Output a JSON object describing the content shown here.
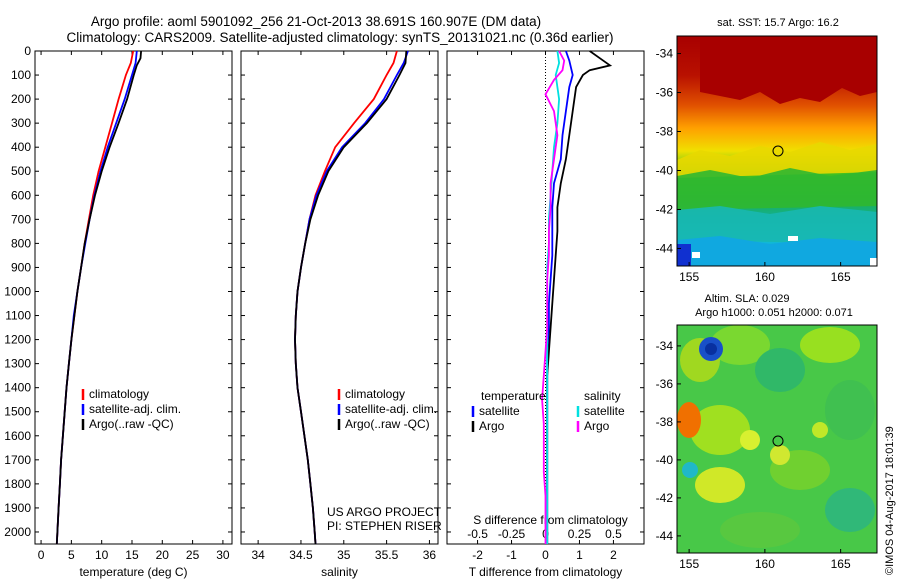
{
  "title_line1": "Argo profile: aoml 5901092_256 21-Oct-2013 38.691S 160.907E (DM data)",
  "title_line2": "Climatology: CARS2009. Satellite-adjusted climatology: synTS_20131021.nc (0.36d earlier)",
  "project_line1": "US ARGO PROJECT",
  "project_line2": "PI: STEPHEN RISER",
  "timestamp": "©IMOS 04-Aug-2017 18:01:39",
  "colors": {
    "climatology": "#ff0000",
    "satellite": "#0000ff",
    "argo": "#000000",
    "sat_salinity": "#00e0e0",
    "argo_salinity": "#ff00ff"
  },
  "chart_data": [
    {
      "type": "line",
      "id": "temperature",
      "xlabel": "temperature (deg C)",
      "ylabel": "",
      "xlim": [
        -1,
        31.5
      ],
      "ylim": [
        2050,
        0
      ],
      "xticks": [
        0,
        5,
        10,
        15,
        20,
        25,
        30
      ],
      "yticks": [
        0,
        100,
        200,
        300,
        400,
        500,
        600,
        700,
        800,
        900,
        1000,
        1100,
        1200,
        1300,
        1400,
        1500,
        1600,
        1700,
        1800,
        1900,
        2000
      ],
      "legend": [
        "climatology",
        "satellite-adj. clim.",
        "Argo(..raw -QC)"
      ],
      "series": [
        {
          "name": "climatology",
          "color": "#ff0000",
          "points": [
            [
              15.2,
              0
            ],
            [
              14.8,
              50
            ],
            [
              14.0,
              100
            ],
            [
              12.8,
              200
            ],
            [
              11.7,
              300
            ],
            [
              10.6,
              400
            ],
            [
              9.5,
              500
            ],
            [
              8.6,
              600
            ],
            [
              7.9,
              700
            ],
            [
              7.2,
              800
            ],
            [
              6.6,
              900
            ],
            [
              6.0,
              1000
            ],
            [
              5.5,
              1100
            ],
            [
              5.0,
              1200
            ],
            [
              4.6,
              1300
            ],
            [
              4.2,
              1400
            ],
            [
              3.9,
              1500
            ],
            [
              3.6,
              1600
            ],
            [
              3.3,
              1700
            ],
            [
              3.1,
              1800
            ],
            [
              2.9,
              1900
            ],
            [
              2.7,
              2000
            ],
            [
              2.6,
              2050
            ]
          ]
        },
        {
          "name": "satellite-adj. clim.",
          "color": "#0000ff",
          "points": [
            [
              15.8,
              0
            ],
            [
              15.6,
              50
            ],
            [
              15.0,
              100
            ],
            [
              13.8,
              200
            ],
            [
              12.4,
              300
            ],
            [
              11.0,
              400
            ],
            [
              9.8,
              500
            ],
            [
              8.8,
              600
            ],
            [
              8.0,
              700
            ],
            [
              7.3,
              800
            ],
            [
              6.6,
              900
            ],
            [
              6.0,
              1000
            ],
            [
              5.4,
              1100
            ],
            [
              5.0,
              1200
            ],
            [
              4.6,
              1300
            ],
            [
              4.2,
              1400
            ],
            [
              3.9,
              1500
            ],
            [
              3.6,
              1600
            ],
            [
              3.3,
              1700
            ],
            [
              3.1,
              1800
            ],
            [
              2.9,
              1900
            ],
            [
              2.7,
              2000
            ],
            [
              2.6,
              2050
            ]
          ]
        },
        {
          "name": "Argo(..raw -QC)",
          "color": "#000000",
          "points": [
            [
              16.5,
              0
            ],
            [
              16.4,
              30
            ],
            [
              15.8,
              60
            ],
            [
              15.3,
              100
            ],
            [
              14.2,
              200
            ],
            [
              12.8,
              300
            ],
            [
              11.3,
              400
            ],
            [
              10.0,
              500
            ],
            [
              8.9,
              600
            ],
            [
              8.0,
              700
            ],
            [
              7.2,
              800
            ],
            [
              6.6,
              900
            ],
            [
              6.0,
              1000
            ],
            [
              5.5,
              1100
            ],
            [
              5.0,
              1200
            ],
            [
              4.6,
              1300
            ],
            [
              4.2,
              1400
            ],
            [
              3.9,
              1500
            ],
            [
              3.6,
              1600
            ],
            [
              3.3,
              1700
            ],
            [
              3.1,
              1800
            ],
            [
              2.9,
              1900
            ],
            [
              2.7,
              2000
            ],
            [
              2.6,
              2050
            ]
          ]
        }
      ]
    },
    {
      "type": "line",
      "id": "salinity",
      "xlabel": "salinity",
      "ylabel": "",
      "xlim": [
        33.8,
        36.1
      ],
      "ylim": [
        2050,
        0
      ],
      "xticks": [
        34,
        34.5,
        35,
        35.5,
        36
      ],
      "legend": [
        "climatology",
        "satellite-adj. clim.",
        "Argo(..raw -QC)"
      ],
      "series": [
        {
          "name": "climatology",
          "color": "#ff0000",
          "points": [
            [
              35.62,
              0
            ],
            [
              35.58,
              50
            ],
            [
              35.5,
              100
            ],
            [
              35.35,
              200
            ],
            [
              35.12,
              300
            ],
            [
              34.9,
              400
            ],
            [
              34.78,
              500
            ],
            [
              34.67,
              600
            ],
            [
              34.6,
              700
            ],
            [
              34.55,
              800
            ],
            [
              34.5,
              900
            ],
            [
              34.46,
              1000
            ],
            [
              34.44,
              1100
            ],
            [
              34.43,
              1200
            ],
            [
              34.44,
              1300
            ],
            [
              34.46,
              1400
            ],
            [
              34.5,
              1500
            ],
            [
              34.54,
              1600
            ],
            [
              34.58,
              1700
            ],
            [
              34.61,
              1800
            ],
            [
              34.64,
              1900
            ],
            [
              34.66,
              2000
            ],
            [
              34.67,
              2050
            ]
          ]
        },
        {
          "name": "satellite-adj. clim.",
          "color": "#0000ff",
          "points": [
            [
              35.75,
              0
            ],
            [
              35.7,
              50
            ],
            [
              35.62,
              100
            ],
            [
              35.47,
              200
            ],
            [
              35.25,
              300
            ],
            [
              34.98,
              400
            ],
            [
              34.8,
              500
            ],
            [
              34.68,
              600
            ],
            [
              34.6,
              700
            ],
            [
              34.55,
              800
            ],
            [
              34.5,
              900
            ],
            [
              34.46,
              1000
            ],
            [
              34.44,
              1100
            ],
            [
              34.43,
              1200
            ],
            [
              34.44,
              1300
            ],
            [
              34.46,
              1400
            ],
            [
              34.5,
              1500
            ],
            [
              34.54,
              1600
            ],
            [
              34.58,
              1700
            ],
            [
              34.61,
              1800
            ],
            [
              34.64,
              1900
            ],
            [
              34.66,
              2000
            ],
            [
              34.67,
              2050
            ]
          ]
        },
        {
          "name": "Argo(..raw -QC)",
          "color": "#000000",
          "points": [
            [
              35.73,
              0
            ],
            [
              35.72,
              50
            ],
            [
              35.65,
              100
            ],
            [
              35.5,
              200
            ],
            [
              35.27,
              300
            ],
            [
              35.0,
              400
            ],
            [
              34.82,
              500
            ],
            [
              34.7,
              600
            ],
            [
              34.61,
              700
            ],
            [
              34.55,
              800
            ],
            [
              34.5,
              900
            ],
            [
              34.46,
              1000
            ],
            [
              34.44,
              1100
            ],
            [
              34.43,
              1200
            ],
            [
              34.44,
              1300
            ],
            [
              34.46,
              1400
            ],
            [
              34.5,
              1500
            ],
            [
              34.54,
              1600
            ],
            [
              34.58,
              1700
            ],
            [
              34.61,
              1800
            ],
            [
              34.64,
              1900
            ],
            [
              34.66,
              2000
            ],
            [
              34.67,
              2050
            ]
          ]
        }
      ]
    },
    {
      "type": "line",
      "id": "difference",
      "xlabel": "T difference from climatology",
      "xlabel_top": "S difference from climatology",
      "ylabel": "",
      "xlim": [
        -2.9,
        2.9
      ],
      "ylim": [
        2050,
        0
      ],
      "xticks": [
        -2,
        -1,
        0,
        1,
        2
      ],
      "s_xticks": [
        -0.5,
        -0.25,
        0,
        0.25,
        0.5
      ],
      "legend_left_title": "temperature",
      "legend_right_title": "salinity",
      "legend": [
        "satellite",
        "Argo",
        "satellite",
        "Argo"
      ],
      "series": [
        {
          "name": "satellite",
          "color": "#0000ff",
          "points": [
            [
              0.6,
              0
            ],
            [
              0.7,
              40
            ],
            [
              0.8,
              100
            ],
            [
              0.7,
              150
            ],
            [
              0.6,
              250
            ],
            [
              0.5,
              350
            ],
            [
              0.45,
              450
            ],
            [
              0.25,
              550
            ],
            [
              0.2,
              650
            ],
            [
              0.2,
              750
            ],
            [
              0.2,
              850
            ],
            [
              0.15,
              950
            ],
            [
              0.1,
              1050
            ],
            [
              0.1,
              1150
            ],
            [
              0.05,
              1250
            ],
            [
              0.05,
              1350
            ],
            [
              0.05,
              1450
            ],
            [
              0.05,
              1550
            ],
            [
              0.05,
              1650
            ],
            [
              0.05,
              1750
            ],
            [
              0.05,
              1850
            ],
            [
              0.05,
              1950
            ],
            [
              0.05,
              2050
            ]
          ]
        },
        {
          "name": "Argo",
          "color": "#000000",
          "points": [
            [
              1.3,
              0
            ],
            [
              1.6,
              30
            ],
            [
              1.9,
              60
            ],
            [
              1.3,
              80
            ],
            [
              1.1,
              100
            ],
            [
              0.9,
              150
            ],
            [
              0.8,
              250
            ],
            [
              0.7,
              350
            ],
            [
              0.6,
              450
            ],
            [
              0.45,
              550
            ],
            [
              0.35,
              650
            ],
            [
              0.35,
              750
            ],
            [
              0.3,
              850
            ],
            [
              0.25,
              950
            ],
            [
              0.2,
              1050
            ],
            [
              0.15,
              1150
            ],
            [
              0.1,
              1250
            ],
            [
              0.05,
              1350
            ],
            [
              0.05,
              1450
            ],
            [
              0.05,
              1550
            ],
            [
              0.05,
              1650
            ],
            [
              0.05,
              1750
            ],
            [
              0.05,
              1850
            ],
            [
              0.05,
              1950
            ],
            [
              0.05,
              2050
            ]
          ]
        },
        {
          "name": "satellite",
          "color": "#00e0e0",
          "points": [
            [
              0.35,
              0
            ],
            [
              0.4,
              50
            ],
            [
              0.3,
              100
            ],
            [
              0.4,
              200
            ],
            [
              0.35,
              300
            ],
            [
              0.25,
              400
            ],
            [
              0.2,
              500
            ],
            [
              0.15,
              600
            ],
            [
              0.1,
              700
            ],
            [
              0.1,
              800
            ],
            [
              0.05,
              900
            ],
            [
              0.05,
              1000
            ],
            [
              0.05,
              1100
            ],
            [
              0.05,
              1200
            ],
            [
              0.05,
              1300
            ],
            [
              0.05,
              1400
            ],
            [
              0.05,
              1500
            ],
            [
              0.05,
              1600
            ],
            [
              0.05,
              1700
            ],
            [
              0.05,
              1800
            ],
            [
              0.05,
              1900
            ],
            [
              0.05,
              2000
            ],
            [
              0.05,
              2050
            ]
          ]
        },
        {
          "name": "Argo",
          "color": "#ff00ff",
          "points": [
            [
              0.4,
              0
            ],
            [
              0.55,
              40
            ],
            [
              0.5,
              80
            ],
            [
              0.25,
              120
            ],
            [
              0.0,
              180
            ],
            [
              0.25,
              250
            ],
            [
              0.35,
              350
            ],
            [
              0.25,
              450
            ],
            [
              0.15,
              550
            ],
            [
              0.15,
              650
            ],
            [
              0.1,
              750
            ],
            [
              0.1,
              850
            ],
            [
              0.05,
              950
            ],
            [
              0.05,
              1050
            ],
            [
              0.05,
              1150
            ],
            [
              0.0,
              1250
            ],
            [
              -0.05,
              1350
            ],
            [
              -0.1,
              1450
            ],
            [
              -0.05,
              1550
            ],
            [
              -0.05,
              1650
            ],
            [
              -0.05,
              1750
            ],
            [
              0.0,
              1850
            ],
            [
              0.0,
              1950
            ],
            [
              0.0,
              2050
            ]
          ]
        }
      ]
    },
    {
      "type": "heatmap",
      "id": "sst_map",
      "title": "sat. SST: 15.7  Argo: 16.2",
      "xticks": [
        155,
        160,
        165
      ],
      "yticks": [
        -34,
        -36,
        -38,
        -40,
        -42,
        -44
      ],
      "marker": [
        160.9,
        -38.7
      ]
    },
    {
      "type": "heatmap",
      "id": "sla_map",
      "title_line1": "Altim. SLA: 0.029",
      "title_line2": "Argo h1000: 0.051 h2000: 0.071",
      "xticks": [
        155,
        160,
        165
      ],
      "yticks": [
        -34,
        -36,
        -38,
        -40,
        -42,
        -44
      ],
      "marker": [
        160.9,
        -38.7
      ]
    }
  ]
}
